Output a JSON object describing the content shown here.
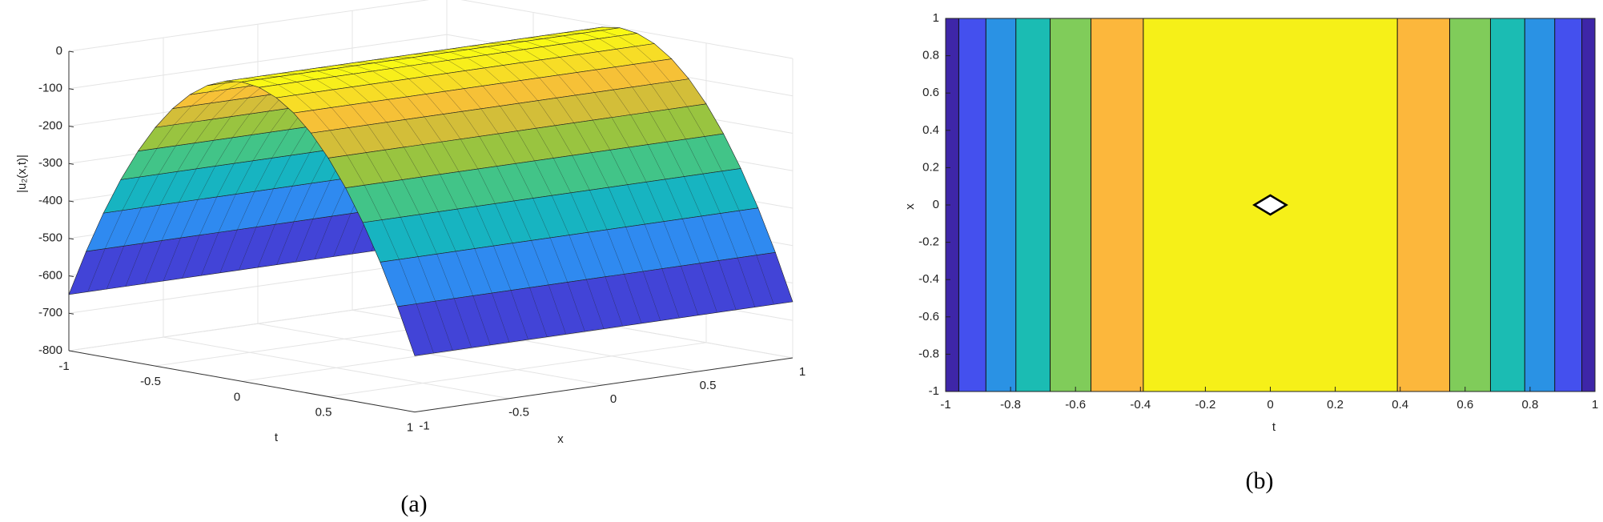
{
  "chart_data": [
    {
      "type": "surface",
      "caption": "(a)",
      "zlabel": "|u₂(x,t)|",
      "xlabel": "x",
      "ylabel": "t",
      "t": [
        -1,
        -0.9,
        -0.8,
        -0.7,
        -0.6,
        -0.5,
        -0.4,
        -0.3,
        -0.2,
        -0.1,
        0,
        0.1,
        0.2,
        0.3,
        0.4,
        0.5,
        0.6,
        0.7,
        0.8,
        0.9,
        1
      ],
      "x": [
        -1,
        1
      ],
      "z": [
        [
          -650,
          -526.5,
          -416,
          -318.5,
          -234,
          -162.5,
          -104,
          -58.5,
          -26,
          -6.5,
          0,
          -6.5,
          -26,
          -58.5,
          -104,
          -162.5,
          -234,
          -318.5,
          -416,
          -526.5,
          -650
        ],
        [
          -650,
          -526.5,
          -416,
          -318.5,
          -234,
          -162.5,
          -104,
          -58.5,
          -26,
          -6.5,
          0,
          -6.5,
          -26,
          -58.5,
          -104,
          -162.5,
          -234,
          -318.5,
          -416,
          -526.5,
          -650
        ]
      ],
      "tlim": [
        -1,
        1
      ],
      "xlim": [
        -1,
        1
      ],
      "zlim": [
        -800,
        0
      ],
      "tticks": [
        -1,
        -0.5,
        0,
        0.5,
        1
      ],
      "xticks": [
        -1,
        -0.5,
        0,
        0.5,
        1
      ],
      "zticks": [
        -800,
        -700,
        -600,
        -500,
        -400,
        -300,
        -200,
        -100,
        0
      ],
      "colormap": [
        "#3e26a8",
        "#4453ef",
        "#2d8ef0",
        "#15b3c4",
        "#3fc48a",
        "#a7c435",
        "#f5b93c",
        "#f9fb14"
      ],
      "grid": true
    },
    {
      "type": "contour",
      "caption": "(b)",
      "xlabel": "t",
      "ylabel": "x",
      "t": [
        -1,
        -0.9,
        -0.8,
        -0.7,
        -0.6,
        -0.5,
        -0.4,
        -0.3,
        -0.2,
        -0.1,
        0,
        0.1,
        0.2,
        0.3,
        0.4,
        0.5,
        0.6,
        0.7,
        0.8,
        0.9,
        1
      ],
      "x": [
        -1,
        1
      ],
      "z": [
        [
          -650,
          -526.5,
          -416,
          -318.5,
          -234,
          -162.5,
          -104,
          -58.5,
          -26,
          -6.5,
          0,
          -6.5,
          -26,
          -58.5,
          -104,
          -162.5,
          -234,
          -318.5,
          -416,
          -526.5,
          -650
        ],
        [
          -650,
          -526.5,
          -416,
          -318.5,
          -234,
          -162.5,
          -104,
          -58.5,
          -26,
          -6.5,
          0,
          -6.5,
          -26,
          -58.5,
          -104,
          -162.5,
          -234,
          -318.5,
          -416,
          -526.5,
          -650
        ]
      ],
      "levels": [
        -600,
        -500,
        -400,
        -300,
        -200,
        -100
      ],
      "colors": [
        "#3e26a8",
        "#4450ee",
        "#2a92e4",
        "#1bbcb3",
        "#80cc5a",
        "#fcb73c",
        "#f6f018"
      ],
      "xlim": [
        -1,
        1
      ],
      "ylim": [
        -1,
        1
      ],
      "xticks": [
        -1,
        -0.8,
        -0.6,
        -0.4,
        -0.2,
        0,
        0.2,
        0.4,
        0.6,
        0.8,
        1
      ],
      "yticks": [
        -1,
        -0.8,
        -0.6,
        -0.4,
        -0.2,
        0,
        0.2,
        0.4,
        0.6,
        0.8,
        1
      ]
    }
  ]
}
